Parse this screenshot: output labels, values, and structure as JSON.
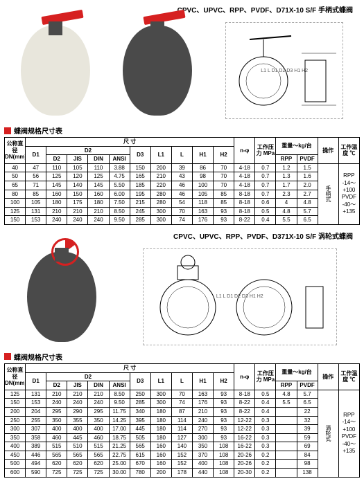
{
  "section1": {
    "title": "CPVC、UPVC、RPP、PVDF、D71X-10 S/F 手柄式蝶阀",
    "table_title": "蝶阀规格尺寸表",
    "headers": {
      "dn": "公称直径 DN(mm)",
      "d1": "D1",
      "size": "尺 寸",
      "d2": "D2",
      "d2_sub": [
        "D2",
        "JIS",
        "DIN",
        "ANSI"
      ],
      "d3": "D3",
      "l1": "L1",
      "l": "L",
      "h1": "H1",
      "h2": "H2",
      "nphi": "n-φ",
      "pressure": "工作压力 MPa",
      "weight": "重量～kg/台",
      "weight_sub": [
        "RPP",
        "PVDF"
      ],
      "op": "操作",
      "temp": "工作温度 ℃"
    },
    "rows": [
      [
        "40",
        "47",
        "110",
        "105",
        "110",
        "3.88",
        "150",
        "200",
        "39",
        "86",
        "70",
        "4-18",
        "0.7",
        "1.2",
        "1.5"
      ],
      [
        "50",
        "56",
        "125",
        "120",
        "125",
        "4.75",
        "165",
        "210",
        "43",
        "98",
        "70",
        "4-18",
        "0.7",
        "1.3",
        "1.6"
      ],
      [
        "65",
        "71",
        "145",
        "140",
        "145",
        "5.50",
        "185",
        "220",
        "46",
        "100",
        "70",
        "4-18",
        "0.7",
        "1.7",
        "2.0"
      ],
      [
        "80",
        "85",
        "160",
        "150",
        "160",
        "6.00",
        "195",
        "280",
        "46",
        "105",
        "85",
        "8-18",
        "0.7",
        "2.3",
        "2.7"
      ],
      [
        "100",
        "105",
        "180",
        "175",
        "180",
        "7.50",
        "215",
        "280",
        "54",
        "118",
        "85",
        "8-18",
        "0.6",
        "4",
        "4.8"
      ],
      [
        "125",
        "131",
        "210",
        "210",
        "210",
        "8.50",
        "245",
        "300",
        "70",
        "163",
        "93",
        "8-18",
        "0.5",
        "4.8",
        "5.7"
      ],
      [
        "150",
        "153",
        "240",
        "240",
        "240",
        "9.50",
        "285",
        "300",
        "74",
        "176",
        "93",
        "8-22",
        "0.4",
        "5.5",
        "6.5"
      ]
    ],
    "op_text": "手柄式",
    "temp_text": "RPP\n-14～+100\nPVDF\n-40～+135"
  },
  "section2": {
    "title": "CPVC、UPVC、RPP、PVDF、D371X-10 S/F 涡轮式蝶阀",
    "table_title": "蝶阀规格尺寸表",
    "headers": {
      "dn": "公称直径 DN(mm)",
      "d1": "D1",
      "size": "尺 寸",
      "d2": "D2",
      "d2_sub": [
        "D2",
        "JIS",
        "DIN",
        "ANSI"
      ],
      "d3": "D3",
      "l1": "L1",
      "l": "L",
      "h1": "H1",
      "h2": "H2",
      "nphi": "n-φ",
      "pressure": "工作压力 MPa",
      "weight": "重量～kg/台",
      "weight_sub": [
        "RPP",
        "PVDF"
      ],
      "op": "操作",
      "temp": "工作温度 ℃"
    },
    "rows": [
      [
        "125",
        "131",
        "210",
        "210",
        "210",
        "8.50",
        "250",
        "300",
        "70",
        "163",
        "93",
        "8-18",
        "0.5",
        "4.8",
        "5.7"
      ],
      [
        "150",
        "153",
        "240",
        "240",
        "240",
        "9.50",
        "285",
        "300",
        "74",
        "176",
        "93",
        "8-22",
        "0.4",
        "5.5",
        "6.5"
      ],
      [
        "200",
        "204",
        "295",
        "290",
        "295",
        "11.75",
        "340",
        "180",
        "87",
        "210",
        "93",
        "8-22",
        "0.4",
        "",
        "22"
      ],
      [
        "250",
        "255",
        "350",
        "355",
        "350",
        "14.25",
        "395",
        "180",
        "114",
        "240",
        "93",
        "12-22",
        "0.3",
        "",
        "32"
      ],
      [
        "300",
        "307",
        "400",
        "400",
        "400",
        "17.00",
        "445",
        "180",
        "114",
        "270",
        "93",
        "12-22",
        "0.3",
        "",
        "39"
      ],
      [
        "350",
        "358",
        "460",
        "445",
        "460",
        "18.75",
        "505",
        "180",
        "127",
        "300",
        "93",
        "16-22",
        "0.3",
        "",
        "59"
      ],
      [
        "400",
        "389",
        "515",
        "510",
        "515",
        "21.25",
        "565",
        "160",
        "140",
        "350",
        "108",
        "16-22",
        "0.3",
        "",
        "69"
      ],
      [
        "450",
        "446",
        "565",
        "565",
        "565",
        "22.75",
        "615",
        "160",
        "152",
        "370",
        "108",
        "20-26",
        "0.2",
        "",
        "84"
      ],
      [
        "500",
        "494",
        "620",
        "620",
        "620",
        "25.00",
        "670",
        "160",
        "152",
        "400",
        "108",
        "20-26",
        "0.2",
        "",
        "98"
      ],
      [
        "600",
        "590",
        "725",
        "725",
        "725",
        "30.00",
        "780",
        "200",
        "178",
        "440",
        "108",
        "20-30",
        "0.2",
        "",
        "138"
      ]
    ],
    "op_text": "涡轮式",
    "temp_text": "RPP\n-14～+100\nPVDF\n-40～+135"
  }
}
